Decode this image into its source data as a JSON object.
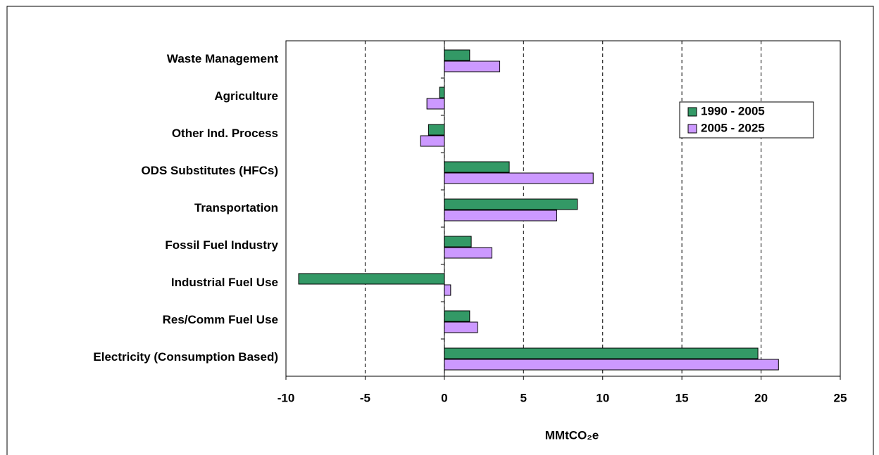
{
  "chart_data": {
    "type": "hbar",
    "x_label": "MMtCO₂e",
    "categories": [
      "Waste Management",
      "Agriculture",
      "Other Ind. Process",
      "ODS Substitutes (HFCs)",
      "Transportation",
      "Fossil Fuel Industry",
      "Industrial Fuel Use",
      "Res/Comm Fuel Use",
      "Electricity (Consumption Based)"
    ],
    "series": [
      {
        "name": "1990 - 2005",
        "color": "#339966",
        "values": [
          1.6,
          -0.3,
          -1.0,
          4.1,
          8.4,
          1.7,
          -9.2,
          1.6,
          19.8
        ]
      },
      {
        "name": "2005 - 2025",
        "color": "#cc99ff",
        "values": [
          3.5,
          -1.1,
          -1.5,
          9.4,
          7.1,
          3.0,
          0.4,
          2.1,
          21.1
        ]
      }
    ],
    "xlim": [
      -10,
      25
    ],
    "xticks": [
      -10,
      -5,
      0,
      5,
      10,
      15,
      20,
      25
    ],
    "grid": true,
    "legend": "upper right"
  }
}
